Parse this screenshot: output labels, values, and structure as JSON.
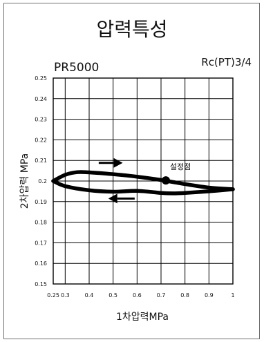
{
  "chart_data": {
    "type": "line",
    "title": "압력특성",
    "model": "PR5000",
    "port": "Rc(PT)3/4",
    "xlabel": "1차압력MPa",
    "ylabel": "2차압력 MPa",
    "xlim": [
      0.25,
      1.0
    ],
    "ylim": [
      0.15,
      0.25
    ],
    "x_ticks": [
      "0.25",
      "0.3",
      "0.4",
      "0.5",
      "0.6",
      "0.7",
      "0.8",
      "0.9",
      "1"
    ],
    "x_tick_values": [
      0.25,
      0.3,
      0.4,
      0.5,
      0.6,
      0.7,
      0.8,
      0.9,
      1.0
    ],
    "y_ticks": [
      "0.15",
      "0.16",
      "0.17",
      "0.18",
      "0.19",
      "0.2",
      "0.21",
      "0.22",
      "0.23",
      "0.24",
      "0.25"
    ],
    "y_tick_values": [
      0.15,
      0.16,
      0.17,
      0.18,
      0.19,
      0.2,
      0.21,
      0.22,
      0.23,
      0.24,
      0.25
    ],
    "grid": true,
    "series": [
      {
        "direction": "increasing",
        "x": [
          0.25,
          0.3,
          0.35,
          0.4,
          0.5,
          0.6,
          0.7,
          0.8,
          0.9,
          1.0
        ],
        "y": [
          0.2,
          0.203,
          0.2043,
          0.2042,
          0.2033,
          0.2021,
          0.2005,
          0.1985,
          0.1968,
          0.196
        ]
      },
      {
        "direction": "decreasing",
        "x": [
          1.0,
          0.9,
          0.8,
          0.75,
          0.7,
          0.6,
          0.5,
          0.4,
          0.3,
          0.25
        ],
        "y": [
          0.196,
          0.195,
          0.1942,
          0.194,
          0.1942,
          0.1952,
          0.1948,
          0.1955,
          0.1975,
          0.2
        ]
      }
    ],
    "set_point": {
      "label": "설정점",
      "x": 0.72,
      "y": 0.2003
    },
    "arrows": [
      {
        "direction": "right",
        "x_start": 0.44,
        "x_end": 0.54,
        "y": 0.2088
      },
      {
        "direction": "left",
        "x_start": 0.59,
        "x_end": 0.48,
        "y": 0.1915
      }
    ],
    "color": "#000000"
  }
}
